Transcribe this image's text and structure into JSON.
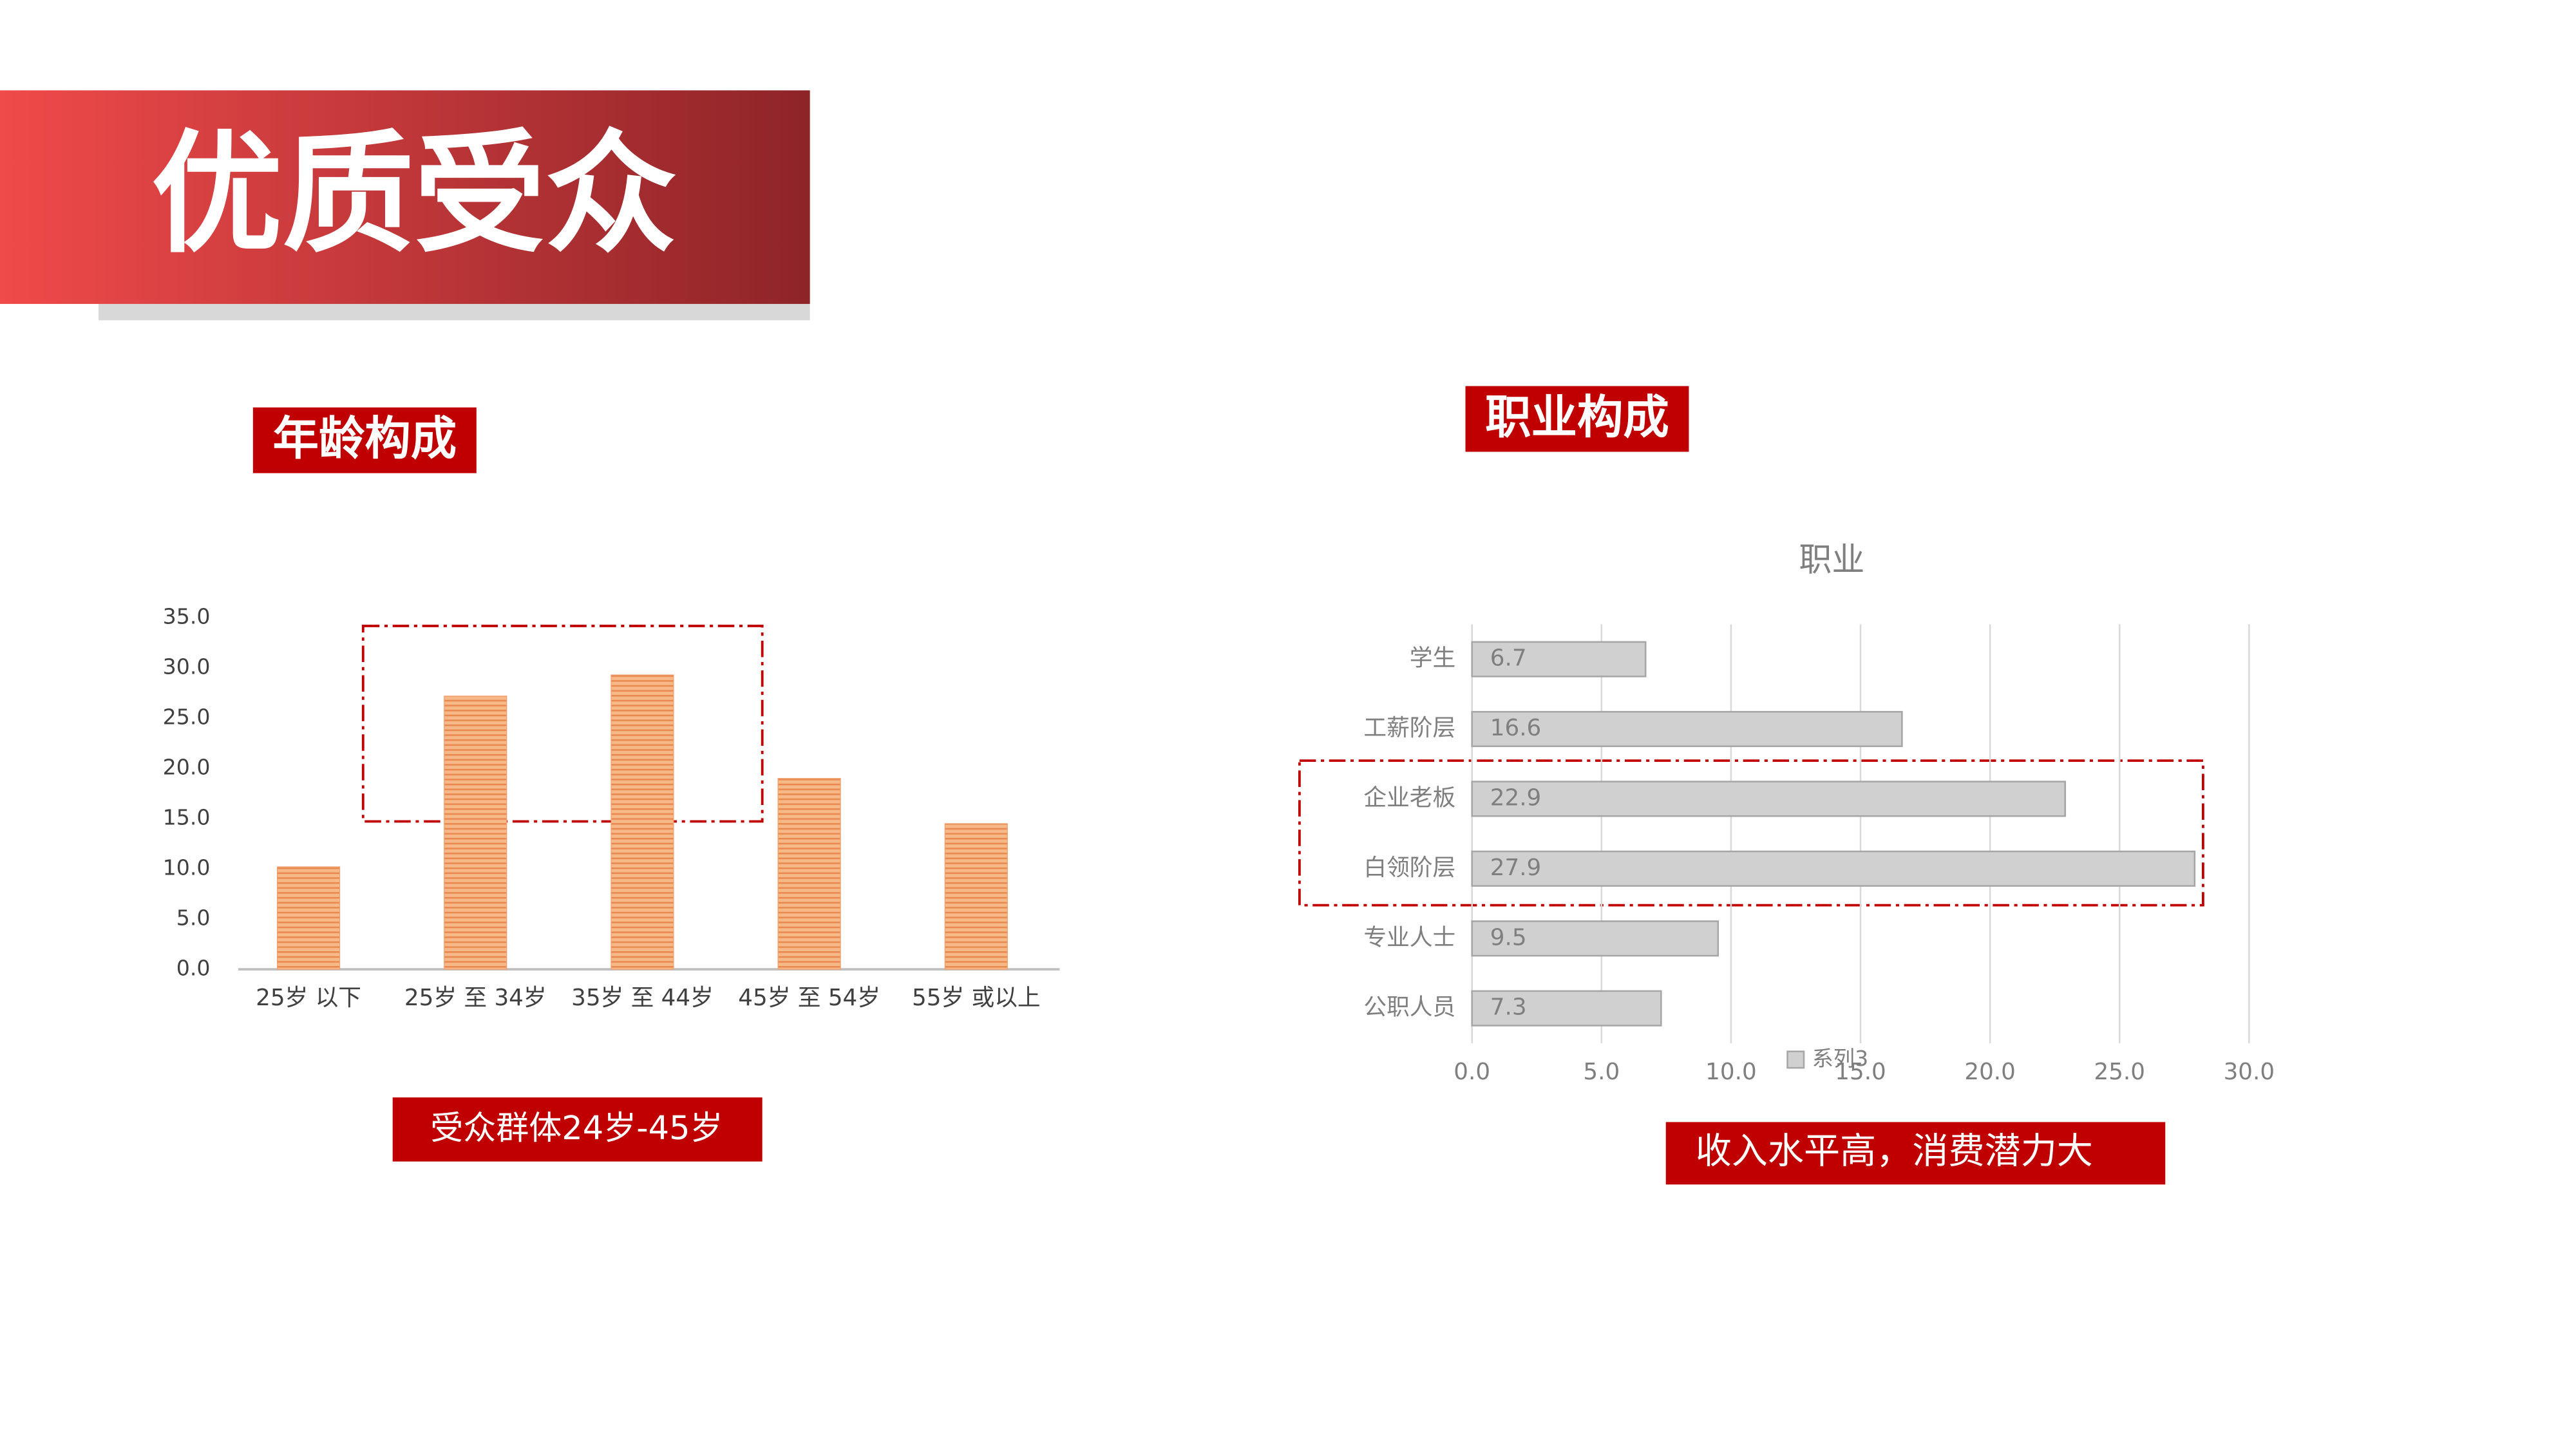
{
  "header": {
    "title": "优质受众"
  },
  "chart_data": [
    {
      "type": "bar",
      "orientation": "vertical",
      "heading": "年龄构成",
      "caption": "受众群体24岁-45岁",
      "categories": [
        "25岁 以下",
        "25岁 至 34岁",
        "35岁 至 44岁",
        "45岁 至 54岁",
        "55岁 或以上"
      ],
      "values": [
        10.2,
        27.2,
        29.3,
        19.0,
        14.5
      ],
      "color": "#f0a070",
      "ylim": [
        0,
        35
      ],
      "yticks": [
        {
          "value": 0,
          "label": "0.0"
        },
        {
          "value": 5,
          "label": "5.0"
        },
        {
          "value": 10,
          "label": "10.0"
        },
        {
          "value": 15,
          "label": "15.0"
        },
        {
          "value": 20,
          "label": "20.0"
        },
        {
          "value": 25,
          "label": "25.0"
        },
        {
          "value": 30,
          "label": "30.0"
        },
        {
          "value": 35,
          "label": "35.0"
        }
      ],
      "grid": false
    },
    {
      "type": "bar",
      "orientation": "horizontal",
      "heading": "职业构成",
      "title": "职业",
      "caption": "收入水平高，消费潜力大",
      "categories": [
        "学生",
        "工薪阶层",
        "企业老板",
        "白领阶层",
        "专业人士",
        "公职人员"
      ],
      "series": [
        {
          "name": "系列3",
          "color": "#d0d0d0",
          "values": [
            6.7,
            16.6,
            22.9,
            27.9,
            9.5,
            7.3
          ]
        }
      ],
      "xlim": [
        0,
        30
      ],
      "xticks": [
        {
          "value": 0,
          "label": "0.0"
        },
        {
          "value": 5,
          "label": "5.0"
        },
        {
          "value": 10,
          "label": "10.0"
        },
        {
          "value": 15,
          "label": "15.0"
        },
        {
          "value": 20,
          "label": "20.0"
        },
        {
          "value": 25,
          "label": "25.0"
        },
        {
          "value": 30,
          "label": "30.0"
        }
      ],
      "grid": true,
      "legend": "bottom"
    }
  ]
}
